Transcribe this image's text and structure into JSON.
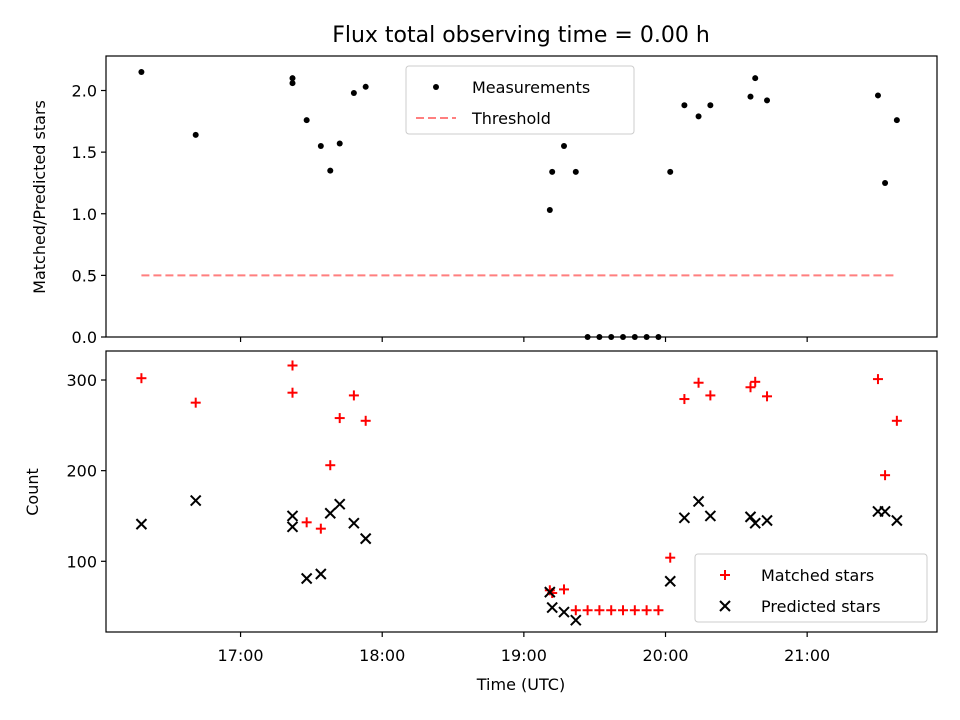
{
  "chart_data": [
    {
      "type": "scatter",
      "title": "Flux total observing time = 0.00 h",
      "ylabel": "Matched/Predicted stars",
      "xlabel": "",
      "xlim": [
        "16:03",
        "21:55"
      ],
      "ylim": [
        0,
        2.28
      ],
      "yticks": [
        0.0,
        0.5,
        1.0,
        1.5,
        2.0
      ],
      "ytick_labels": [
        "0.0",
        "0.5",
        "1.0",
        "1.5",
        "2.0"
      ],
      "xticks": [
        "17:00",
        "18:00",
        "19:00",
        "20:00",
        "21:00"
      ],
      "grid": false,
      "legend_position": "upper-center",
      "series": [
        {
          "name": "Measurements",
          "marker": "dot",
          "color": "#000000",
          "x": [
            "16:18",
            "16:41",
            "17:22",
            "17:22",
            "17:28",
            "17:34",
            "17:38",
            "17:42",
            "17:48",
            "17:53",
            "19:11",
            "19:12",
            "19:17",
            "19:22",
            "19:27",
            "19:32",
            "19:37",
            "19:42",
            "19:47",
            "19:52",
            "19:57",
            "20:02",
            "20:08",
            "20:14",
            "20:19",
            "20:36",
            "20:38",
            "20:43",
            "21:30",
            "21:33",
            "21:38"
          ],
          "y": [
            2.15,
            1.64,
            2.1,
            2.06,
            1.76,
            1.55,
            1.35,
            1.57,
            1.98,
            2.03,
            1.03,
            1.34,
            1.55,
            1.34,
            0.0,
            0.0,
            0.0,
            0.0,
            0.0,
            0.0,
            0.0,
            1.34,
            1.88,
            1.79,
            1.88,
            1.95,
            2.1,
            1.92,
            1.96,
            1.25,
            1.76
          ]
        },
        {
          "name": "Threshold",
          "marker": "dashed-line",
          "color": "#ff7f7f",
          "x": [
            "16:18",
            "21:38"
          ],
          "y": [
            0.5,
            0.5
          ]
        }
      ]
    },
    {
      "type": "scatter",
      "title": "",
      "ylabel": "Count",
      "xlabel": "Time (UTC)",
      "xlim": [
        "16:03",
        "21:55"
      ],
      "ylim": [
        22,
        332
      ],
      "yticks": [
        100,
        200,
        300
      ],
      "ytick_labels": [
        "100",
        "200",
        "300"
      ],
      "xticks": [
        "17:00",
        "18:00",
        "19:00",
        "20:00",
        "21:00"
      ],
      "grid": false,
      "legend_position": "lower-right",
      "series": [
        {
          "name": "Matched stars",
          "marker": "plus",
          "color": "#ff0000",
          "x": [
            "16:18",
            "16:41",
            "17:22",
            "17:22",
            "17:28",
            "17:34",
            "17:38",
            "17:42",
            "17:48",
            "17:53",
            "19:11",
            "19:12",
            "19:17",
            "19:22",
            "19:27",
            "19:32",
            "19:37",
            "19:42",
            "19:47",
            "19:52",
            "19:57",
            "20:02",
            "20:08",
            "20:14",
            "20:19",
            "20:36",
            "20:38",
            "20:43",
            "21:30",
            "21:33",
            "21:38"
          ],
          "y": [
            302,
            275,
            316,
            286,
            143,
            136,
            206,
            258,
            283,
            255,
            68,
            65,
            69,
            46,
            46,
            46,
            46,
            46,
            46,
            46,
            46,
            104,
            279,
            297,
            283,
            292,
            298,
            282,
            301,
            195,
            255
          ]
        },
        {
          "name": "Predicted stars",
          "marker": "x",
          "color": "#000000",
          "x": [
            "16:18",
            "16:41",
            "17:22",
            "17:22",
            "17:28",
            "17:34",
            "17:38",
            "17:42",
            "17:48",
            "17:53",
            "19:11",
            "19:12",
            "19:17",
            "19:22",
            "20:02",
            "20:08",
            "20:14",
            "20:19",
            "20:36",
            "20:38",
            "20:43",
            "21:30",
            "21:33",
            "21:38"
          ],
          "y": [
            141,
            167,
            150,
            138,
            81,
            86,
            153,
            163,
            142,
            125,
            66,
            49,
            44,
            35,
            78,
            148,
            166,
            150,
            149,
            142,
            145,
            155,
            155,
            145
          ]
        }
      ]
    }
  ]
}
